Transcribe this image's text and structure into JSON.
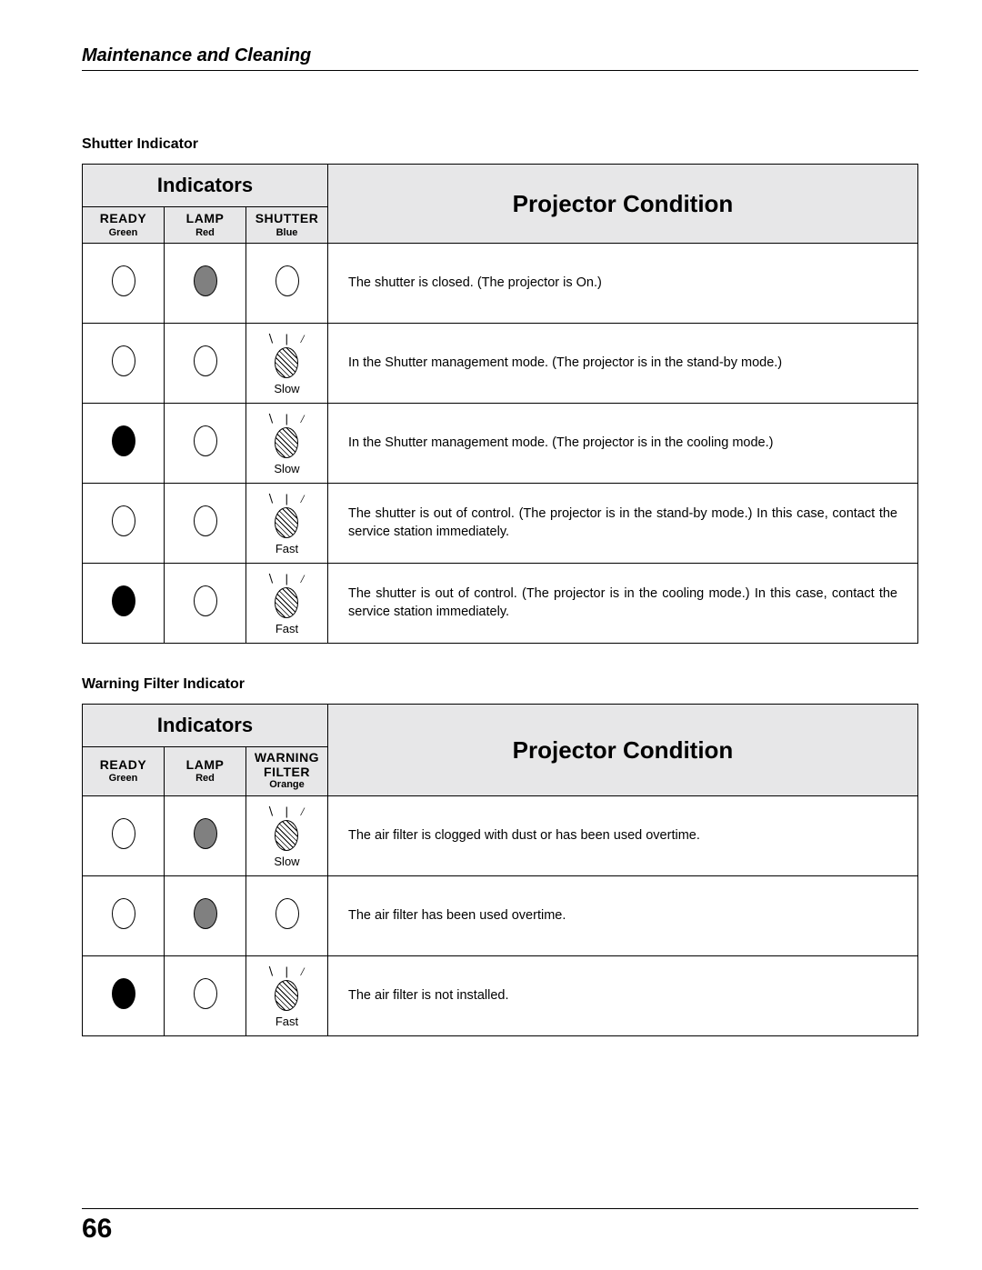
{
  "page": {
    "section": "Maintenance and Cleaning",
    "number": "66"
  },
  "table1": {
    "heading": "Shutter Indicator",
    "indicators_label": "Indicators",
    "condition_label": "Projector Condition",
    "cols": [
      {
        "name": "READY",
        "color": "Green"
      },
      {
        "name": "LAMP",
        "color": "Red"
      },
      {
        "name": "SHUTTER",
        "color": "Blue"
      }
    ],
    "rows": [
      {
        "ready": "empty",
        "lamp": "gray",
        "shutter": "empty",
        "speed": "",
        "text": "The shutter is closed. (The projector is On.)"
      },
      {
        "ready": "empty",
        "lamp": "empty",
        "shutter": "hatched",
        "speed": "Slow",
        "text": "In the Shutter management mode. (The projector is in the stand-by mode.)"
      },
      {
        "ready": "black",
        "lamp": "empty",
        "shutter": "hatched",
        "speed": "Slow",
        "text": "In the Shutter management mode. (The projector is in the cooling mode.)"
      },
      {
        "ready": "empty",
        "lamp": "empty",
        "shutter": "hatched",
        "speed": "Fast",
        "text": "The shutter is out of control. (The projector is in the stand-by mode.) In this case, contact the service station immediately."
      },
      {
        "ready": "black",
        "lamp": "empty",
        "shutter": "hatched",
        "speed": "Fast",
        "text": "The shutter is out of control.  (The projector is in the cooling mode.) In this case, contact the service station immediately."
      }
    ]
  },
  "table2": {
    "heading": "Warning Filter Indicator",
    "indicators_label": "Indicators",
    "condition_label": "Projector Condition",
    "cols": [
      {
        "name": "READY",
        "color": "Green"
      },
      {
        "name": "LAMP",
        "color": "Red"
      },
      {
        "name": "WARNING FILTER",
        "color": "Orange"
      }
    ],
    "rows": [
      {
        "ready": "empty",
        "lamp": "gray",
        "shutter": "hatched",
        "speed": "Slow",
        "text": "The air filter is clogged with dust or has been used overtime."
      },
      {
        "ready": "empty",
        "lamp": "gray",
        "shutter": "empty",
        "speed": "",
        "text": "The air filter has been used overtime."
      },
      {
        "ready": "black",
        "lamp": "empty",
        "shutter": "hatched",
        "speed": "Fast",
        "text": "The air filter is not installed."
      }
    ]
  }
}
